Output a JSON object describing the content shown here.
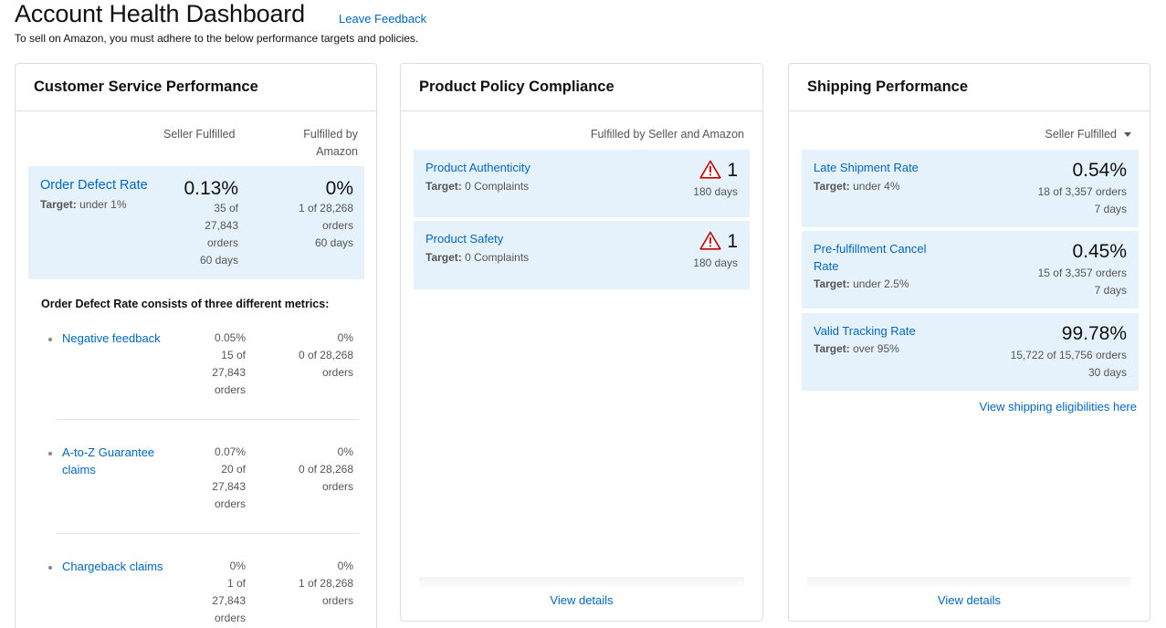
{
  "header": {
    "title": "Account Health Dashboard",
    "feedback_link": "Leave Feedback",
    "subtitle": "To sell on Amazon, you must adhere to the below performance targets and policies."
  },
  "customer_service": {
    "title": "Customer Service Performance",
    "col_seller": "Seller Fulfilled",
    "col_fba_1": "Fulfilled by",
    "col_fba_2": "Amazon",
    "odr": {
      "label": "Order Defect Rate",
      "target_label": "Target:",
      "target_value": "under 1%",
      "seller_value": "0.13%",
      "seller_detail": [
        "35 of",
        "27,843",
        "orders",
        "60 days"
      ],
      "fba_value": "0%",
      "fba_detail": [
        "1 of 28,268",
        "orders",
        "60 days"
      ]
    },
    "consists_title": "Order Defect Rate consists of three different metrics:",
    "metrics": [
      {
        "label_lines": [
          "Negative feedback"
        ],
        "seller_lines": [
          "0.05%",
          "15 of",
          "27,843",
          "orders"
        ],
        "fba_lines": [
          "0%",
          "0 of 28,268",
          "orders"
        ]
      },
      {
        "label_lines": [
          "A-to-Z Guarantee",
          "claims"
        ],
        "seller_lines": [
          "0.07%",
          "20 of",
          "27,843",
          "orders"
        ],
        "fba_lines": [
          "0%",
          "0 of 28,268",
          "orders"
        ]
      },
      {
        "label_lines": [
          "Chargeback claims"
        ],
        "seller_lines": [
          "0%",
          "1 of",
          "27,843",
          "orders"
        ],
        "fba_lines": [
          "0%",
          "1 of 28,268",
          "orders"
        ]
      }
    ]
  },
  "product_policy": {
    "title": "Product Policy Compliance",
    "col_head": "Fulfilled by Seller and Amazon",
    "items": [
      {
        "label": "Product Authenticity",
        "target_label": "Target:",
        "target_value": "0 Complaints",
        "count": "1",
        "period": "180 days"
      },
      {
        "label": "Product Safety",
        "target_label": "Target:",
        "target_value": "0 Complaints",
        "count": "1",
        "period": "180 days"
      }
    ],
    "view_details": "View details"
  },
  "shipping": {
    "title": "Shipping Performance",
    "dropdown": "Seller Fulfilled",
    "items": [
      {
        "label_lines": [
          "Late Shipment Rate"
        ],
        "target_label": "Target:",
        "target_value": "under 4%",
        "value": "0.54%",
        "detail": "18 of 3,357 orders",
        "period": "7 days"
      },
      {
        "label_lines": [
          "Pre-fulfillment Cancel",
          "Rate"
        ],
        "target_label": "Target:",
        "target_value": "under 2.5%",
        "value": "0.45%",
        "detail": "15 of 3,357 orders",
        "period": "7 days"
      },
      {
        "label_lines": [
          "Valid Tracking Rate"
        ],
        "target_label": "Target:",
        "target_value": "over 95%",
        "value": "99.78%",
        "detail": "15,722 of 15,756 orders",
        "period": "30 days"
      }
    ],
    "eligibility_link": "View shipping eligibilities here",
    "view_details": "View details"
  },
  "colors": {
    "link": "#0066c0",
    "panel_bg": "#e6f2fb",
    "warning": "#c40000"
  }
}
